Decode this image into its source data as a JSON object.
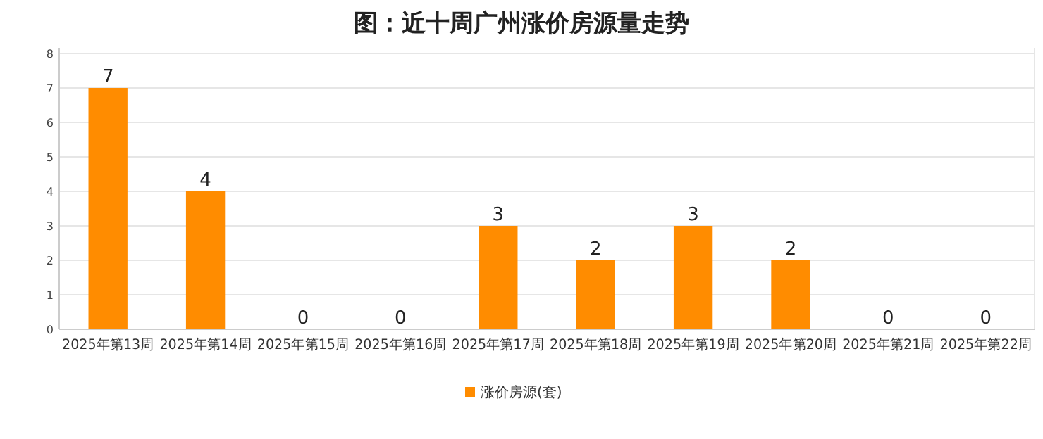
{
  "chart_data": {
    "type": "bar",
    "title": "图：近十周广州涨价房源量走势",
    "categories": [
      "2025年第13周",
      "2025年第14周",
      "2025年第15周",
      "2025年第16周",
      "2025年第17周",
      "2025年第18周",
      "2025年第19周",
      "2025年第20周",
      "2025年第21周",
      "2025年第22周"
    ],
    "series": [
      {
        "name": "涨价房源(套)",
        "color": "#ff8c00",
        "values": [
          7,
          4,
          0,
          0,
          3,
          2,
          3,
          2,
          0,
          0
        ]
      }
    ],
    "ylim": [
      0,
      8
    ],
    "yticks": [
      0,
      1,
      2,
      3,
      4,
      5,
      6,
      7,
      8
    ],
    "grid": "y",
    "legend": "bottom",
    "data_labels": true
  }
}
